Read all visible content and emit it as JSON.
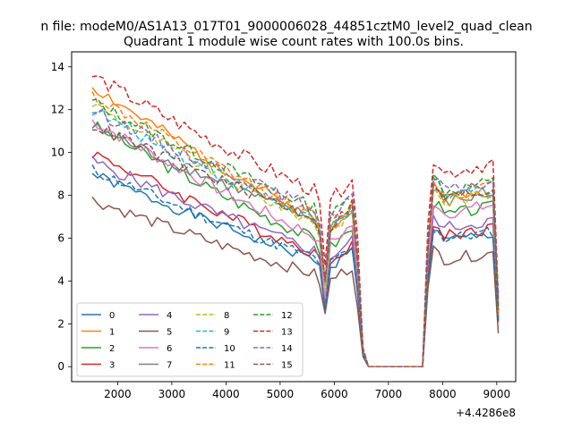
{
  "figure": {
    "suptitle": "n file: modeM0/AS1A13_017T01_9000006028_44851cztM0_level2_quad_clean"
  },
  "chart_data": {
    "type": "line",
    "title": "Quadrant 1 module wise count rates with 100.0s bins.",
    "xlabel": "",
    "ylabel": "",
    "x_offset_label": "+4.4286e8",
    "xlim": [
      1150,
      9350
    ],
    "ylim": [
      -0.7,
      14.7
    ],
    "xticks": [
      2000,
      3000,
      4000,
      5000,
      6000,
      7000,
      8000,
      9000
    ],
    "yticks": [
      0,
      2,
      4,
      6,
      8,
      10,
      12,
      14
    ],
    "grid": false,
    "legend": {
      "placement": "lower-left",
      "columns": 4
    },
    "x_breakpoints": [
      1530,
      5650,
      5740,
      5790,
      5800,
      5900,
      6380,
      6480,
      6560,
      7650,
      7760,
      7850,
      8000,
      8950,
      9030
    ],
    "base_curve": [
      1.0,
      0.86,
      0.78,
      1.04,
      0.33,
      0.8,
      0.95,
      0.25,
      0.0,
      0.0,
      0.82,
      0.95,
      0.85,
      0.9,
      0.3
    ],
    "series": [
      {
        "name": "0",
        "color": "#1f77b4",
        "dash": "solid",
        "start": 9.0,
        "end": 5.8,
        "late": 6.9,
        "wig": 0.25,
        "seed": 1
      },
      {
        "name": "1",
        "color": "#ff7f0e",
        "dash": "solid",
        "start": 13.1,
        "end": 8.0,
        "late": 9.2,
        "wig": 0.3,
        "seed": 2
      },
      {
        "name": "2",
        "color": "#2ca02c",
        "dash": "solid",
        "start": 11.3,
        "end": 6.9,
        "late": 8.3,
        "wig": 0.3,
        "seed": 3
      },
      {
        "name": "3",
        "color": "#d62728",
        "dash": "solid",
        "start": 10.0,
        "end": 6.2,
        "late": 7.2,
        "wig": 0.3,
        "seed": 4
      },
      {
        "name": "4",
        "color": "#9467bd",
        "dash": "solid",
        "start": 9.6,
        "end": 6.3,
        "late": 7.6,
        "wig": 0.3,
        "seed": 5
      },
      {
        "name": "5",
        "color": "#8c564b",
        "dash": "solid",
        "start": 7.8,
        "end": 5.0,
        "late": 5.9,
        "wig": 0.28,
        "seed": 6
      },
      {
        "name": "6",
        "color": "#e377c2",
        "dash": "solid",
        "start": 11.5,
        "end": 7.1,
        "late": 8.4,
        "wig": 0.3,
        "seed": 7
      },
      {
        "name": "7",
        "color": "#7f7f7f",
        "dash": "solid",
        "start": 11.2,
        "end": 8.0,
        "late": 9.0,
        "wig": 0.3,
        "seed": 8
      },
      {
        "name": "8",
        "color": "#bcbd22",
        "dash": "dashed",
        "start": 12.3,
        "end": 7.8,
        "late": 9.0,
        "wig": 0.3,
        "seed": 9
      },
      {
        "name": "9",
        "color": "#17becf",
        "dash": "dashed",
        "start": 12.0,
        "end": 8.0,
        "late": 9.3,
        "wig": 0.3,
        "seed": 10
      },
      {
        "name": "10",
        "color": "#1f77b4",
        "dash": "dashed",
        "start": 9.2,
        "end": 5.9,
        "late": 7.0,
        "wig": 0.28,
        "seed": 11
      },
      {
        "name": "11",
        "color": "#ff7f0e",
        "dash": "dashed",
        "start": 12.7,
        "end": 8.2,
        "late": 9.4,
        "wig": 0.3,
        "seed": 12
      },
      {
        "name": "12",
        "color": "#2ca02c",
        "dash": "dashed",
        "start": 12.4,
        "end": 8.6,
        "late": 9.6,
        "wig": 0.3,
        "seed": 13
      },
      {
        "name": "13",
        "color": "#d62728",
        "dash": "dashed",
        "start": 13.6,
        "end": 9.5,
        "late": 10.6,
        "wig": 0.35,
        "seed": 14
      },
      {
        "name": "14",
        "color": "#9467bd",
        "dash": "dashed",
        "start": 12.0,
        "end": 8.6,
        "late": 9.6,
        "wig": 0.3,
        "seed": 15
      },
      {
        "name": "15",
        "color": "#8c564b",
        "dash": "dashed",
        "start": 11.3,
        "end": 8.1,
        "late": 9.2,
        "wig": 0.3,
        "seed": 16
      }
    ]
  }
}
